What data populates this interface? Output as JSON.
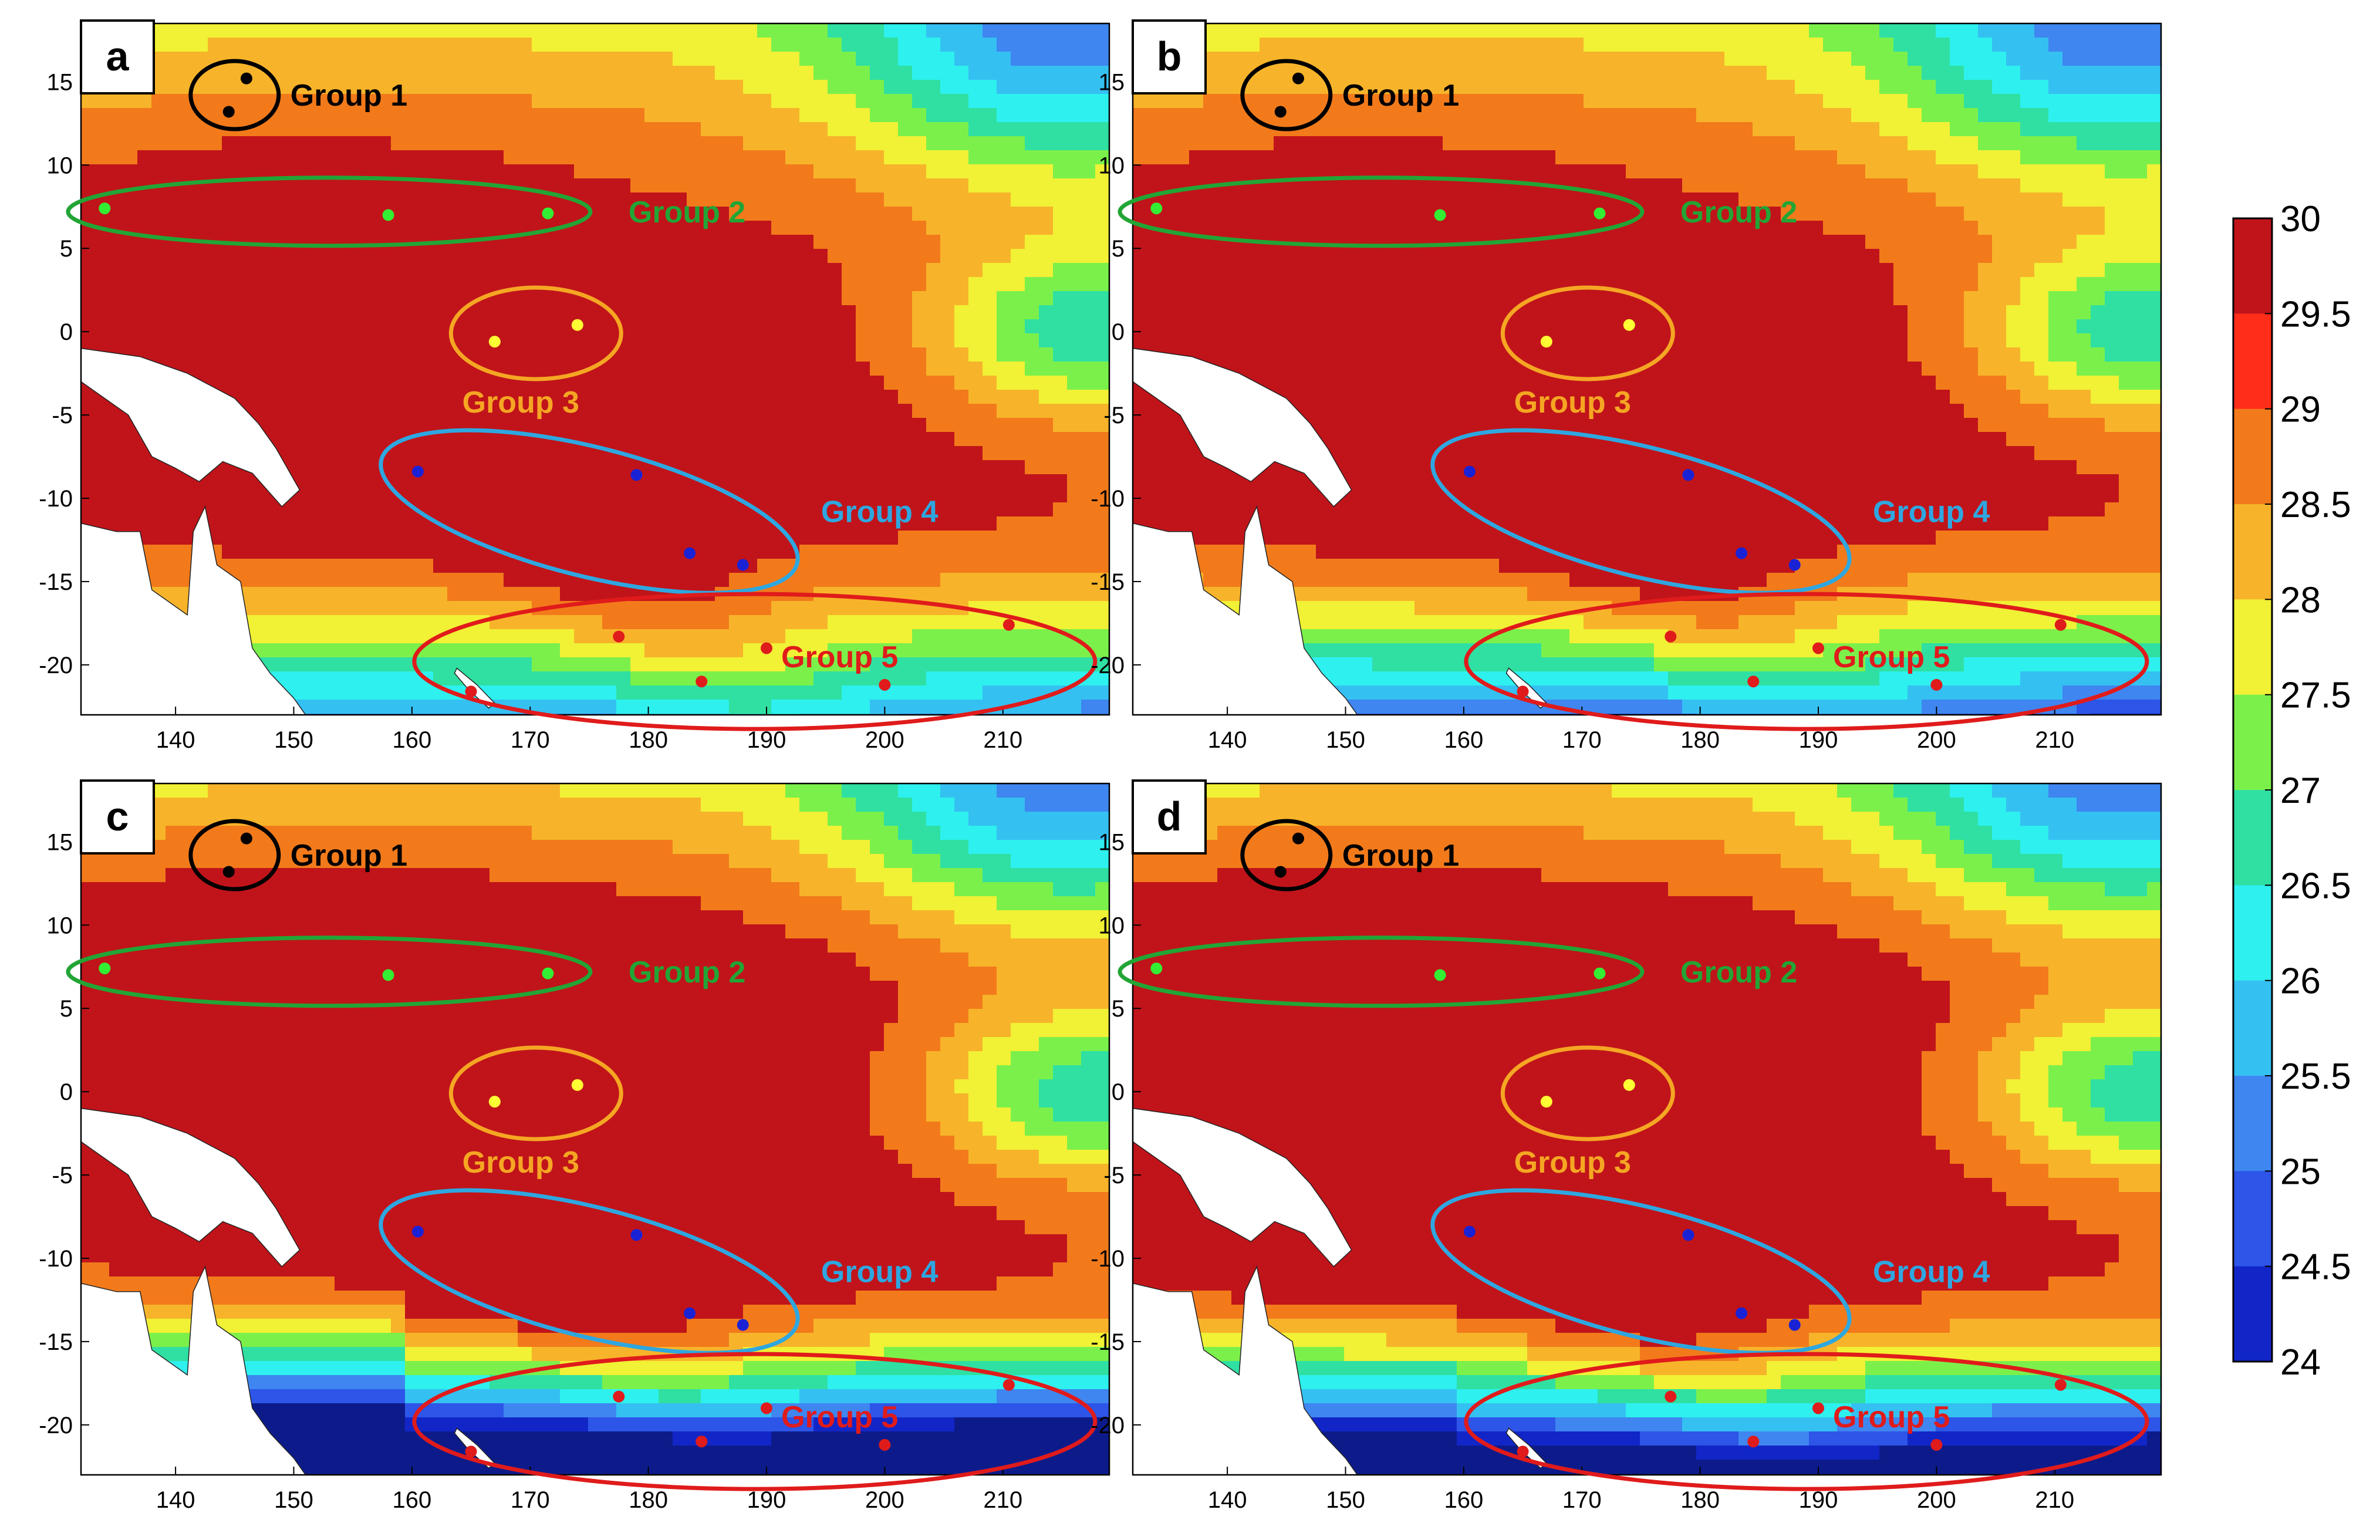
{
  "figure": {
    "panels": [
      {
        "label": "a",
        "variant": "a"
      },
      {
        "label": "b",
        "variant": "b"
      },
      {
        "label": "c",
        "variant": "c"
      },
      {
        "label": "d",
        "variant": "d"
      }
    ]
  },
  "chart_data": {
    "type": "heatmap",
    "title": "",
    "xlabel": "",
    "ylabel": "",
    "x_range": [
      132,
      219
    ],
    "y_range": [
      -23,
      18.5
    ],
    "x_ticks": [
      "140",
      "150",
      "160",
      "170",
      "180",
      "190",
      "200",
      "210"
    ],
    "x_tick_values": [
      140,
      150,
      160,
      170,
      180,
      190,
      200,
      210
    ],
    "y_ticks": [
      "15",
      "10",
      "5",
      "0",
      "-5",
      "-10",
      "-15",
      "-20"
    ],
    "y_tick_values": [
      15,
      10,
      5,
      0,
      -5,
      -10,
      -15,
      -20
    ],
    "colorbar": {
      "min": 24,
      "max": 30,
      "ticks": [
        "30",
        "29.5",
        "29",
        "28.5",
        "28",
        "27.5",
        "27",
        "26.5",
        "26",
        "25.5",
        "25",
        "24.5",
        "24"
      ],
      "tick_values": [
        30,
        29.5,
        29,
        28.5,
        28,
        27.5,
        27,
        26.5,
        26,
        25.5,
        25,
        24.5,
        24
      ],
      "level_colors": [
        "#0d1b8a",
        "#1226c8",
        "#2d55e8",
        "#3f86f0",
        "#35c0f2",
        "#2ef0ee",
        "#2fe0a2",
        "#7cf04a",
        "#f1f135",
        "#f7b42a",
        "#f27a1b",
        "#ff2d1a",
        "#c0141a"
      ]
    },
    "groups": [
      {
        "name": "Group 1",
        "color": "#000000",
        "label_color": "#000000",
        "lon": 145,
        "lat": 14.2,
        "points": [
          [
            146,
            15.2
          ],
          [
            144.5,
            13.2
          ]
        ]
      },
      {
        "name": "Group 2",
        "color": "#22a535",
        "label_color": "#22a535",
        "lon": 153,
        "lat": 7.2,
        "points": [
          [
            134,
            7.4
          ],
          [
            158,
            7
          ],
          [
            171.5,
            7.1
          ]
        ]
      },
      {
        "name": "Group 3",
        "color": "#f5a623",
        "label_color": "#f5a623",
        "lon": 170.5,
        "lat": -0.1,
        "points": [
          [
            167,
            -0.6
          ],
          [
            174,
            0.4
          ]
        ]
      },
      {
        "name": "Group 4",
        "color": "#2ea7e0",
        "label_color": "#2ea7e0",
        "lon": 175,
        "lat": -10.8,
        "points": [
          [
            160.5,
            -8.4
          ],
          [
            179,
            -8.6
          ],
          [
            183.5,
            -13.3
          ],
          [
            188,
            -14
          ]
        ]
      },
      {
        "name": "Group 5",
        "color": "#e01b1b",
        "label_color": "#e01b1b",
        "lon": 190,
        "lat": -19.8,
        "points": [
          [
            165,
            -21.6
          ],
          [
            177.5,
            -18.3
          ],
          [
            184.5,
            -21
          ],
          [
            190,
            -19
          ],
          [
            200,
            -21.2
          ],
          [
            210.5,
            -17.6
          ]
        ]
      }
    ],
    "white_land": {
      "name": "land",
      "color": "#ffffff"
    }
  }
}
